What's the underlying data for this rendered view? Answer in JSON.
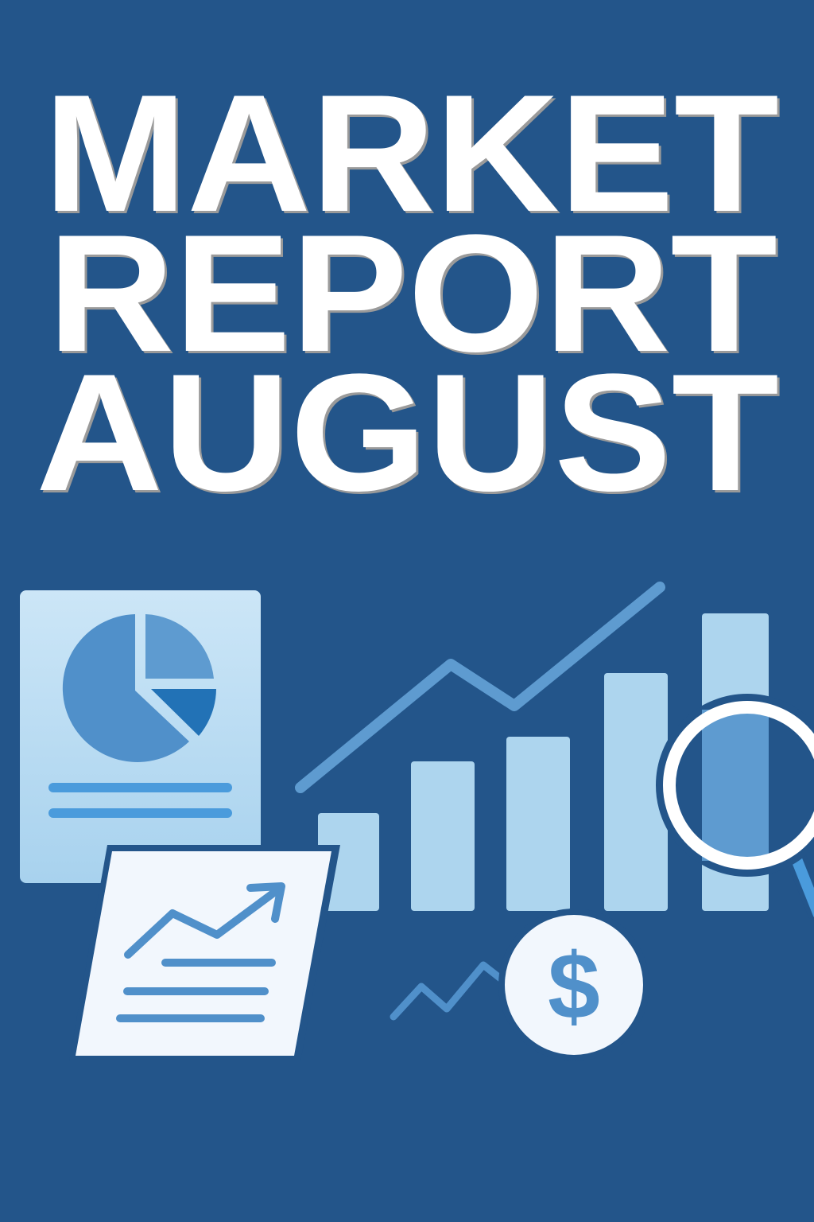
{
  "poster": {
    "title_lines": [
      "MARKET",
      "REPORT",
      "AUGUST"
    ],
    "coin_symbol": "$"
  },
  "icons": [
    "pie-chart-document-icon",
    "line-chart-document-icon",
    "bar-chart-icon",
    "trend-line-icon",
    "magnifier-icon",
    "dollar-coin-icon"
  ],
  "colors": {
    "background": "#23558A",
    "title": "#FFFFFF",
    "bar": "#ADD5EE",
    "accent_line": "#5E9BD0",
    "document_light": "#F2F7FD",
    "document_blue": "#BEDDF3",
    "pie_dark": "#2272B6"
  }
}
